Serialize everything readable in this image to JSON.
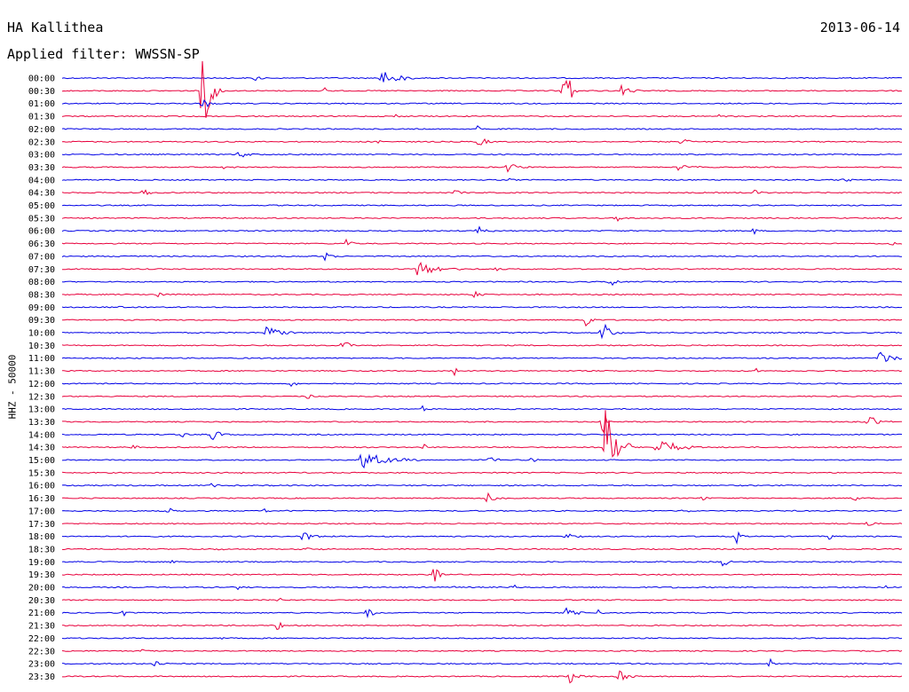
{
  "header": {
    "station": "HA Kallithea",
    "date": "2013-06-14",
    "filter": "Applied filter: WWSSN-SP",
    "channel": "HHZ - 50000"
  },
  "chart_data": {
    "type": "line",
    "title": "HA Kallithea",
    "ylabel": "HHZ - 50000",
    "x_range_minutes": [
      0,
      30
    ],
    "colors": [
      "#0000e6",
      "#e8003c"
    ],
    "tick_labels": [
      "00:00",
      "00:30",
      "01:00",
      "01:30",
      "02:00",
      "02:30",
      "03:00",
      "03:30",
      "04:00",
      "04:30",
      "05:00",
      "05:30",
      "06:00",
      "06:30",
      "07:00",
      "07:30",
      "08:00",
      "08:30",
      "09:00",
      "09:30",
      "10:00",
      "10:30",
      "11:00",
      "11:30",
      "12:00",
      "12:30",
      "13:00",
      "13:30",
      "14:00",
      "14:30",
      "15:00",
      "15:30",
      "16:00",
      "16:30",
      "17:00",
      "17:30",
      "18:00",
      "18:30",
      "19:00",
      "19:30",
      "20:00",
      "20:30",
      "21:00",
      "21:30",
      "22:00",
      "22:30",
      "23:00",
      "23:30"
    ],
    "events": [
      {
        "row": 0,
        "minute": 6.9,
        "amp": 0.6,
        "len": 0.4
      },
      {
        "row": 0,
        "minute": 11.4,
        "amp": 1.2,
        "len": 1.5
      },
      {
        "row": 1,
        "minute": 5.0,
        "amp": 6.0,
        "len": 0.8
      },
      {
        "row": 1,
        "minute": 17.9,
        "amp": 5.0,
        "len": 0.6
      },
      {
        "row": 1,
        "minute": 20.0,
        "amp": 0.9,
        "len": 0.8
      },
      {
        "row": 1,
        "minute": 9.4,
        "amp": 0.5,
        "len": 0.3
      },
      {
        "row": 2,
        "minute": 5.0,
        "amp": 1.5,
        "len": 0.6
      },
      {
        "row": 3,
        "minute": 23.5,
        "amp": 0.3,
        "len": 0.6
      },
      {
        "row": 3,
        "minute": 11.9,
        "amp": 0.3,
        "len": 0.4
      },
      {
        "row": 4,
        "minute": 14.8,
        "amp": 0.6,
        "len": 0.3
      },
      {
        "row": 5,
        "minute": 14.9,
        "amp": 0.8,
        "len": 0.6
      },
      {
        "row": 5,
        "minute": 22.1,
        "amp": 0.8,
        "len": 0.7
      },
      {
        "row": 5,
        "minute": 11.3,
        "amp": 0.4,
        "len": 0.3
      },
      {
        "row": 6,
        "minute": 6.3,
        "amp": 0.6,
        "len": 0.8
      },
      {
        "row": 7,
        "minute": 15.9,
        "amp": 0.6,
        "len": 1.2
      },
      {
        "row": 7,
        "minute": 22.0,
        "amp": 0.4,
        "len": 1.2
      },
      {
        "row": 7,
        "minute": 5.8,
        "amp": 0.3,
        "len": 0.7
      },
      {
        "row": 8,
        "minute": 27.9,
        "amp": 0.4,
        "len": 0.8
      },
      {
        "row": 8,
        "minute": 16.0,
        "amp": 0.3,
        "len": 0.4
      },
      {
        "row": 9,
        "minute": 2.9,
        "amp": 0.6,
        "len": 0.6
      },
      {
        "row": 9,
        "minute": 14.0,
        "amp": 0.5,
        "len": 0.6
      },
      {
        "row": 9,
        "minute": 24.7,
        "amp": 0.5,
        "len": 0.6
      },
      {
        "row": 11,
        "minute": 19.8,
        "amp": 0.8,
        "len": 0.4
      },
      {
        "row": 12,
        "minute": 14.8,
        "amp": 0.8,
        "len": 0.8
      },
      {
        "row": 12,
        "minute": 24.7,
        "amp": 0.6,
        "len": 0.3
      },
      {
        "row": 13,
        "minute": 10.2,
        "amp": 1.4,
        "len": 0.3
      },
      {
        "row": 13,
        "minute": 29.6,
        "amp": 0.5,
        "len": 0.4
      },
      {
        "row": 14,
        "minute": 9.4,
        "amp": 0.6,
        "len": 0.5
      },
      {
        "row": 14,
        "minute": 2.1,
        "amp": 0.3,
        "len": 0.4
      },
      {
        "row": 15,
        "minute": 12.7,
        "amp": 1.0,
        "len": 2.0
      },
      {
        "row": 15,
        "minute": 15.5,
        "amp": 0.3,
        "len": 0.4
      },
      {
        "row": 16,
        "minute": 19.6,
        "amp": 0.8,
        "len": 0.4
      },
      {
        "row": 17,
        "minute": 3.4,
        "amp": 0.5,
        "len": 0.7
      },
      {
        "row": 17,
        "minute": 14.7,
        "amp": 0.4,
        "len": 0.9
      },
      {
        "row": 18,
        "minute": 2.0,
        "amp": 0.3,
        "len": 0.5
      },
      {
        "row": 19,
        "minute": 18.7,
        "amp": 1.6,
        "len": 0.4
      },
      {
        "row": 20,
        "minute": 19.3,
        "amp": 1.8,
        "len": 0.7
      },
      {
        "row": 20,
        "minute": 7.3,
        "amp": 1.0,
        "len": 1.4
      },
      {
        "row": 21,
        "minute": 10.0,
        "amp": 0.7,
        "len": 0.8
      },
      {
        "row": 22,
        "minute": 29.2,
        "amp": 1.0,
        "len": 1.2
      },
      {
        "row": 23,
        "minute": 14.0,
        "amp": 0.7,
        "len": 0.3
      },
      {
        "row": 23,
        "minute": 24.8,
        "amp": 0.3,
        "len": 0.3
      },
      {
        "row": 24,
        "minute": 8.2,
        "amp": 0.5,
        "len": 0.4
      },
      {
        "row": 25,
        "minute": 8.8,
        "amp": 0.5,
        "len": 0.4
      },
      {
        "row": 26,
        "minute": 12.9,
        "amp": 0.5,
        "len": 0.3
      },
      {
        "row": 27,
        "minute": 28.8,
        "amp": 0.8,
        "len": 1.0
      },
      {
        "row": 27,
        "minute": 19.3,
        "amp": 2.0,
        "len": 0.4
      },
      {
        "row": 28,
        "minute": 5.3,
        "amp": 0.8,
        "len": 0.9
      },
      {
        "row": 28,
        "minute": 4.3,
        "amp": 0.5,
        "len": 0.3
      },
      {
        "row": 29,
        "minute": 19.4,
        "amp": 8.0,
        "len": 1.0
      },
      {
        "row": 29,
        "minute": 21.2,
        "amp": 1.4,
        "len": 1.8
      },
      {
        "row": 29,
        "minute": 2.5,
        "amp": 0.5,
        "len": 0.6
      },
      {
        "row": 29,
        "minute": 12.9,
        "amp": 0.6,
        "len": 0.3
      },
      {
        "row": 30,
        "minute": 10.7,
        "amp": 1.2,
        "len": 2.4
      },
      {
        "row": 30,
        "minute": 15.2,
        "amp": 0.6,
        "len": 1.0
      },
      {
        "row": 30,
        "minute": 16.7,
        "amp": 0.4,
        "len": 0.5
      },
      {
        "row": 31,
        "minute": 6.4,
        "amp": 0.3,
        "len": 0.3
      },
      {
        "row": 32,
        "minute": 5.3,
        "amp": 0.4,
        "len": 0.8
      },
      {
        "row": 33,
        "minute": 15.2,
        "amp": 0.7,
        "len": 0.7
      },
      {
        "row": 33,
        "minute": 22.8,
        "amp": 0.6,
        "len": 0.4
      },
      {
        "row": 33,
        "minute": 28.3,
        "amp": 0.6,
        "len": 0.4
      },
      {
        "row": 34,
        "minute": 3.8,
        "amp": 0.5,
        "len": 0.5
      },
      {
        "row": 34,
        "minute": 7.2,
        "amp": 0.5,
        "len": 0.4
      },
      {
        "row": 34,
        "minute": 8.1,
        "amp": 0.3,
        "len": 0.3
      },
      {
        "row": 34,
        "minute": 22.2,
        "amp": 0.4,
        "len": 0.4
      },
      {
        "row": 35,
        "minute": 28.8,
        "amp": 0.5,
        "len": 0.6
      },
      {
        "row": 36,
        "minute": 8.6,
        "amp": 0.8,
        "len": 1.0
      },
      {
        "row": 36,
        "minute": 18.0,
        "amp": 0.6,
        "len": 0.7
      },
      {
        "row": 36,
        "minute": 24.1,
        "amp": 1.0,
        "len": 0.3
      },
      {
        "row": 36,
        "minute": 27.4,
        "amp": 0.5,
        "len": 0.3
      },
      {
        "row": 37,
        "minute": 8.5,
        "amp": 0.6,
        "len": 0.9
      },
      {
        "row": 37,
        "minute": 5.5,
        "amp": 0.3,
        "len": 0.6
      },
      {
        "row": 38,
        "minute": 23.6,
        "amp": 1.2,
        "len": 0.4
      },
      {
        "row": 38,
        "minute": 3.9,
        "amp": 0.3,
        "len": 0.3
      },
      {
        "row": 39,
        "minute": 13.3,
        "amp": 1.4,
        "len": 0.5
      },
      {
        "row": 40,
        "minute": 16.1,
        "amp": 0.6,
        "len": 0.4
      },
      {
        "row": 40,
        "minute": 6.3,
        "amp": 0.4,
        "len": 0.3
      },
      {
        "row": 40,
        "minute": 21.9,
        "amp": 0.4,
        "len": 0.3
      },
      {
        "row": 40,
        "minute": 29.4,
        "amp": 0.4,
        "len": 0.3
      },
      {
        "row": 40,
        "minute": 13.9,
        "amp": 0.3,
        "len": 0.3
      },
      {
        "row": 41,
        "minute": 7.7,
        "amp": 0.6,
        "len": 0.3
      },
      {
        "row": 42,
        "minute": 10.9,
        "amp": 1.0,
        "len": 0.6
      },
      {
        "row": 42,
        "minute": 18.0,
        "amp": 0.7,
        "len": 0.9
      },
      {
        "row": 42,
        "minute": 19.1,
        "amp": 0.6,
        "len": 0.4
      },
      {
        "row": 42,
        "minute": 2.2,
        "amp": 0.4,
        "len": 0.3
      },
      {
        "row": 43,
        "minute": 7.7,
        "amp": 0.8,
        "len": 0.4
      },
      {
        "row": 44,
        "minute": 5.7,
        "amp": 0.3,
        "len": 0.3
      },
      {
        "row": 45,
        "minute": 2.9,
        "amp": 0.3,
        "len": 0.4
      },
      {
        "row": 46,
        "minute": 3.3,
        "amp": 0.7,
        "len": 0.5
      },
      {
        "row": 46,
        "minute": 25.3,
        "amp": 0.8,
        "len": 0.3
      },
      {
        "row": 47,
        "minute": 18.1,
        "amp": 0.9,
        "len": 0.8
      },
      {
        "row": 47,
        "minute": 19.9,
        "amp": 1.0,
        "len": 0.8
      }
    ]
  }
}
